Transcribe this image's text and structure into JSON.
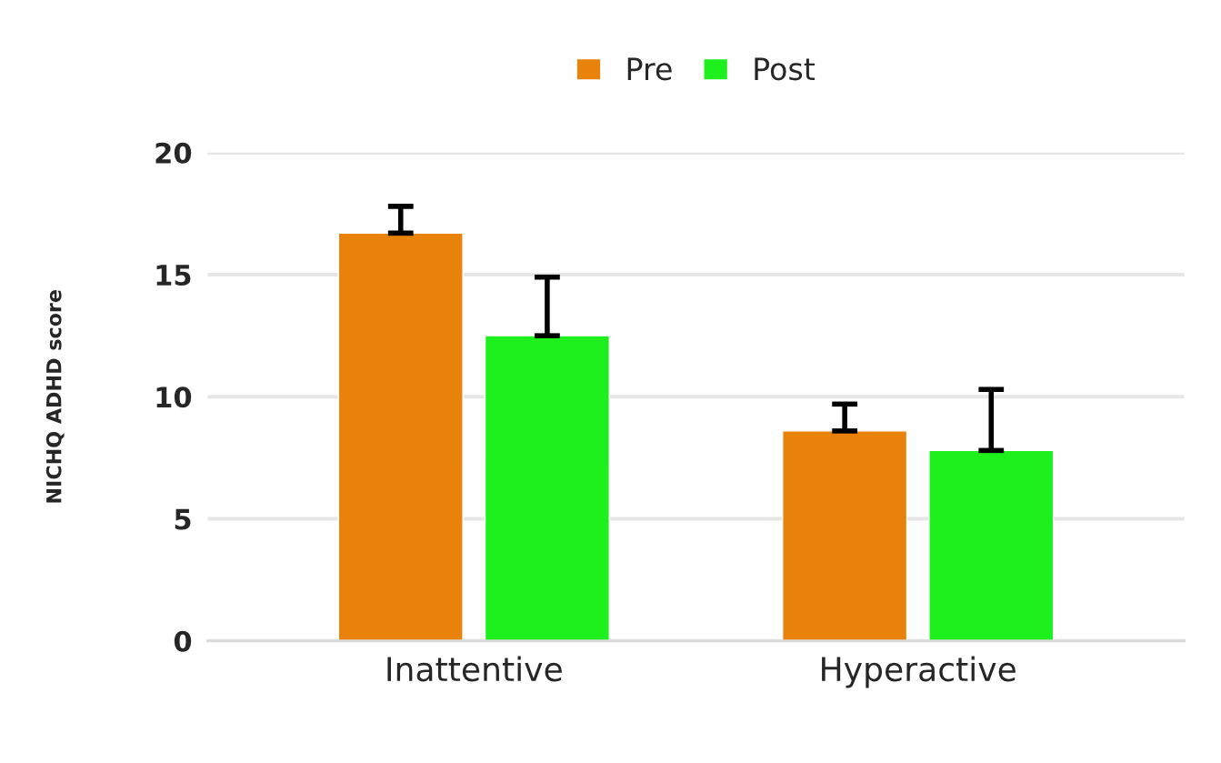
{
  "chart_data": {
    "type": "bar",
    "ylabel": "NICHQ ADHD score",
    "categories": [
      "Inattentive",
      "Hyperactive"
    ],
    "series": [
      {
        "name": "Pre",
        "color": "#e8820a",
        "values": [
          16.7,
          8.6
        ],
        "errors": [
          [
            16.7,
            17.8
          ],
          [
            8.6,
            9.7
          ]
        ]
      },
      {
        "name": "Post",
        "color": "#1ef01e",
        "values": [
          12.5,
          7.8
        ],
        "errors": [
          [
            12.5,
            14.9
          ],
          [
            7.8,
            10.3
          ]
        ]
      }
    ],
    "ylim": [
      0,
      20
    ],
    "yticks": [
      0,
      5,
      10,
      15,
      20
    ],
    "grid": "y",
    "legend": "top"
  }
}
